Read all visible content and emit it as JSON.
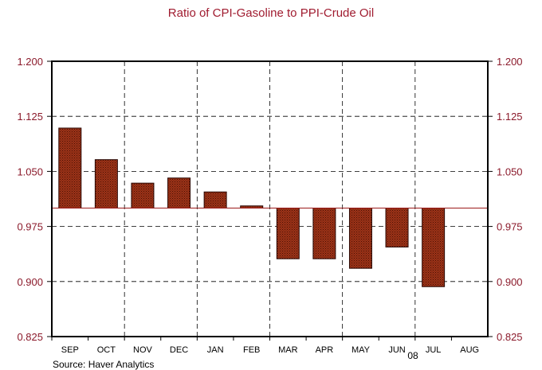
{
  "chart_data": {
    "type": "bar",
    "title": "Ratio of CPI-Gasoline to PPI-Crude Oil",
    "categories": [
      "SEP",
      "OCT",
      "NOV",
      "DEC",
      "JAN",
      "FEB",
      "MAR",
      "APR",
      "MAY",
      "JUN",
      "JUL",
      "AUG"
    ],
    "year_label": "08",
    "values": [
      1.109,
      1.066,
      1.034,
      1.041,
      1.022,
      1.003,
      0.931,
      0.931,
      0.918,
      0.947,
      0.893,
      null
    ],
    "baseline": 1.0,
    "ylim": [
      0.825,
      1.2
    ],
    "yticks": [
      "1.200",
      "1.125",
      "1.050",
      "0.975",
      "0.900",
      "0.825"
    ],
    "ytick_values": [
      1.2,
      1.125,
      1.05,
      0.975,
      0.9,
      0.825
    ],
    "grid": true,
    "source": "Source: Haver Analytics",
    "colors": {
      "bar_fill": "#9c3418",
      "bar_dots": "#4a0f05",
      "bar_stroke": "#2a0804",
      "baseline": "#9c1a1a",
      "title": "#a01c30",
      "ytick": "#8b1a2b"
    }
  }
}
